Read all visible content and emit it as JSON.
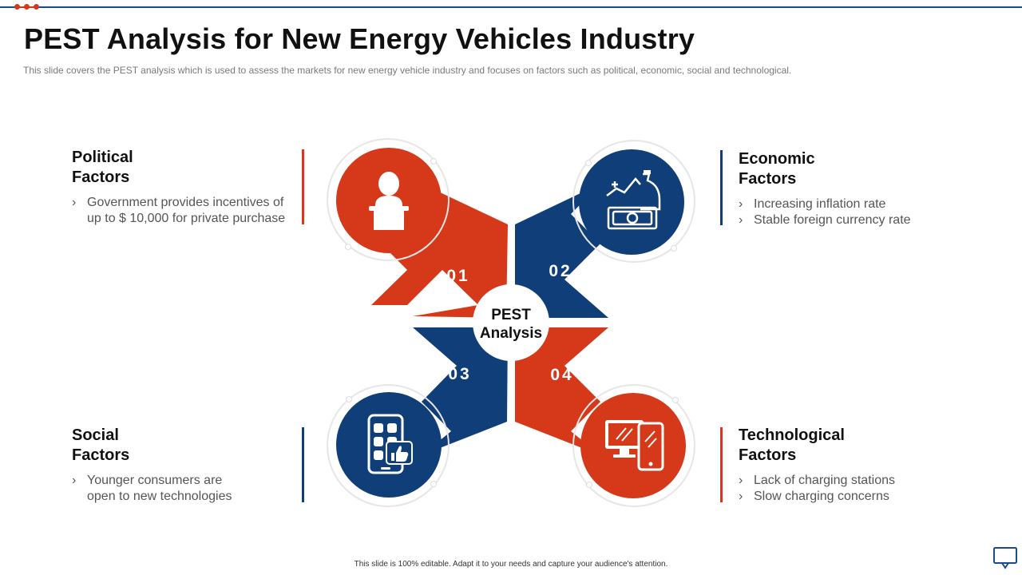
{
  "colors": {
    "red": "#d6391a",
    "navy": "#0f3e78",
    "text": "#111111",
    "muted": "#555555"
  },
  "slide": {
    "title": "PEST Analysis for New Energy Vehicles Industry",
    "subtitle": "This slide covers the PEST analysis which is used to assess the markets for new energy vehicle industry and focuses on factors such as political, economic, social and technological.",
    "footer": "This slide is 100% editable. Adapt it to your needs and capture your audience's attention."
  },
  "center": {
    "line1": "PEST",
    "line2": "Analysis"
  },
  "factors": [
    {
      "number": "01",
      "title_line1": "Political",
      "title_line2": "Factors",
      "icon": "speaker-podium-icon",
      "bullets": [
        "Government provides incentives of up to $ 10,000 for private purchase"
      ]
    },
    {
      "number": "02",
      "title_line1": "Economic",
      "title_line2": "Factors",
      "icon": "money-growth-icon",
      "bullets": [
        "Increasing inflation rate",
        "Stable foreign currency rate"
      ]
    },
    {
      "number": "03",
      "title_line1": "Social",
      "title_line2": "Factors",
      "icon": "social-app-like-icon",
      "bullets": [
        "Younger consumers are open to new technologies"
      ]
    },
    {
      "number": "04",
      "title_line1": "Technological",
      "title_line2": "Factors",
      "icon": "devices-icon",
      "bullets": [
        "Lack of charging stations",
        "Slow charging concerns"
      ]
    }
  ]
}
